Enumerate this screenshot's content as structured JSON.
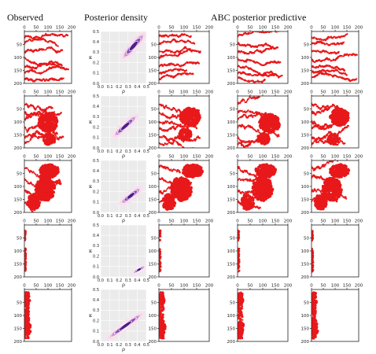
{
  "headers": {
    "observed": "Observed",
    "posterior": "Posterior density",
    "predictive": "ABC posterior predictive"
  },
  "colors": {
    "cells": "#e8191b",
    "axes": "#222222",
    "density_bg": "#ebebeb",
    "density_grid": "#ffffff",
    "density_fill": "#f7e3ee",
    "density_mid": "#c58cd0",
    "density_core": "#4b1f86",
    "density_contour": "#ffffff"
  },
  "chart_data": [
    {
      "type": "scatter",
      "panel_kind": "cell-simulation-grid",
      "description_axes": "observed and simulated cell maps, x axis 0–200 (top), y axis 0–200 (inverted, left)",
      "xlim": [
        0,
        200
      ],
      "ylim": [
        200,
        0
      ],
      "xticks": [
        0,
        50,
        100,
        150,
        200
      ],
      "yticks": [
        50,
        100,
        150,
        200
      ],
      "x_ticklabels": [
        "0",
        "50",
        "100",
        "150",
        "200"
      ],
      "y_ticklabels": [
        "50",
        "100",
        "150",
        "200"
      ],
      "rows": [
        {
          "row": 1,
          "pattern": "horizontal-streaks",
          "columns": [
            "observed",
            "predictive-1",
            "predictive-2",
            "predictive-3"
          ]
        },
        {
          "row": 2,
          "pattern": "streaks-with-central-cluster",
          "columns": [
            "observed",
            "predictive-1",
            "predictive-2",
            "predictive-3"
          ]
        },
        {
          "row": 3,
          "pattern": "dense-clusters",
          "columns": [
            "observed",
            "predictive-1",
            "predictive-2",
            "predictive-3"
          ]
        },
        {
          "row": 4,
          "pattern": "left-edge-only",
          "columns": [
            "observed",
            "predictive-1",
            "predictive-2",
            "predictive-3"
          ]
        },
        {
          "row": 5,
          "pattern": "left-edge-band",
          "columns": [
            "observed",
            "predictive-1",
            "predictive-2",
            "predictive-3"
          ]
        }
      ]
    },
    {
      "type": "heatmap",
      "panel_kind": "posterior-density",
      "xlabel": "ρ",
      "ylabel": "κ",
      "xlim": [
        0.0,
        0.5
      ],
      "ylim": [
        0.0,
        0.5
      ],
      "xticks": [
        0.0,
        0.1,
        0.2,
        0.3,
        0.4,
        0.5
      ],
      "yticks": [
        0.0,
        0.1,
        0.2,
        0.3,
        0.4,
        0.5
      ],
      "x_ticklabels": [
        "0.0",
        "0.1",
        "0.2",
        "0.3",
        "0.4",
        "0.5"
      ],
      "y_ticklabels": [
        "0.0",
        "0.1",
        "0.2",
        "0.3",
        "0.4",
        "0.5"
      ],
      "panels": [
        {
          "row": 1,
          "center": [
            0.36,
            0.36
          ],
          "extent": [
            0.14,
            0.14
          ],
          "spread": 0.025
        },
        {
          "row": 2,
          "center": [
            0.27,
            0.21
          ],
          "extent": [
            0.15,
            0.12
          ],
          "spread": 0.022
        },
        {
          "row": 3,
          "center": [
            0.33,
            0.16
          ],
          "extent": [
            0.13,
            0.09
          ],
          "spread": 0.022
        },
        {
          "row": 4,
          "center": [
            0.42,
            0.07
          ],
          "extent": [
            0.08,
            0.04
          ],
          "spread": 0.016
        },
        {
          "row": 5,
          "center": [
            0.27,
            0.15
          ],
          "extent": [
            0.22,
            0.14
          ],
          "spread": 0.02
        }
      ]
    }
  ]
}
